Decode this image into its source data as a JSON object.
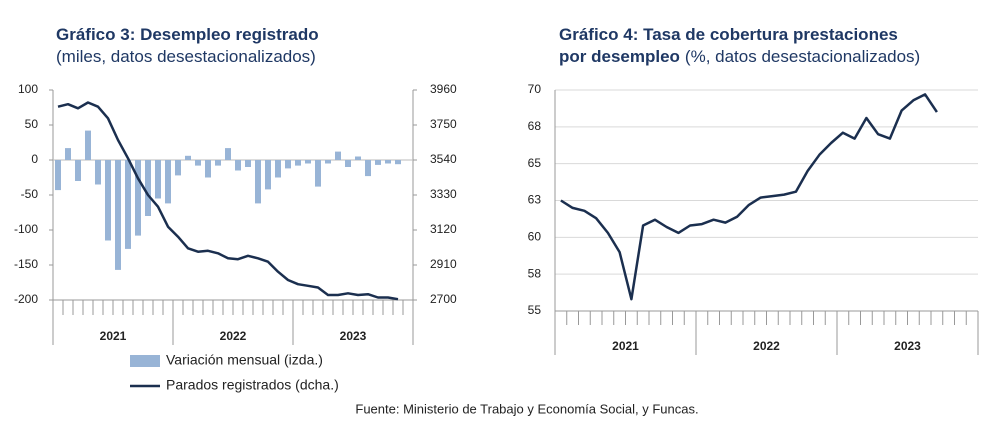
{
  "chart_data": [
    {
      "type": "bar_line",
      "title": [
        "Gráfico 3: Desempleo registrado"
      ],
      "subtitle": "(miles, datos desestacionalizados)",
      "xlim": [
        0,
        36
      ],
      "xticks": [
        {
          "value": 6,
          "label": "2021"
        },
        {
          "value": 18,
          "label": "2022"
        },
        {
          "value": 30,
          "label": "2023"
        }
      ],
      "ylim": [
        -200,
        100
      ],
      "yticks": [
        -200,
        -150,
        -100,
        -50,
        0,
        50,
        100
      ],
      "y2lim": [
        2700,
        3960
      ],
      "y2ticks": [
        2700,
        2910,
        3120,
        3330,
        3540,
        3750,
        3960
      ],
      "grid": false,
      "legend": "bottom",
      "series": [
        {
          "name": "Variación mensual (izda.)",
          "kind": "bar",
          "color": "#98b4d6",
          "values": [
            -43,
            17,
            -30,
            42,
            -35,
            -115,
            -157,
            -127,
            -108,
            -80,
            -55,
            -62,
            -22,
            6,
            -8,
            -25,
            -8,
            17,
            -15,
            -10,
            -62,
            -42,
            -25,
            -12,
            -8,
            -5,
            -38,
            -5,
            12,
            -10,
            5,
            -23,
            -7,
            -5,
            -6
          ]
        },
        {
          "name": "Parados registrados (dcha.)",
          "kind": "line",
          "axis": "y2",
          "color": "#1b2f4f",
          "values": [
            3860,
            3875,
            3850,
            3885,
            3860,
            3790,
            3660,
            3550,
            3430,
            3330,
            3260,
            3140,
            3080,
            3010,
            2990,
            2995,
            2980,
            2950,
            2945,
            2965,
            2950,
            2930,
            2870,
            2820,
            2795,
            2785,
            2775,
            2730,
            2730,
            2740,
            2730,
            2735,
            2715,
            2715,
            2705
          ]
        }
      ]
    },
    {
      "type": "line",
      "title": [
        "Gráfico 4: Tasa de cobertura prestaciones",
        "por desempleo"
      ],
      "subtitle": "(%, datos desestacionalizados)",
      "xlim": [
        0,
        36
      ],
      "xticks": [
        {
          "value": 6,
          "label": "2021"
        },
        {
          "value": 18,
          "label": "2022"
        },
        {
          "value": 30,
          "label": "2023"
        }
      ],
      "ylim": [
        55,
        70
      ],
      "yticks": [
        55,
        {
          "value": 57.5,
          "label": "58"
        },
        60,
        {
          "value": 62.5,
          "label": "63"
        },
        65,
        {
          "value": 67.5,
          "label": "68"
        },
        70
      ],
      "grid": true,
      "series": [
        {
          "name": "Tasa de cobertura",
          "kind": "line",
          "color": "#1b2f4f",
          "values": [
            62.5,
            62.0,
            61.8,
            61.3,
            60.3,
            59.0,
            55.8,
            60.8,
            61.2,
            60.7,
            60.3,
            60.8,
            60.9,
            61.2,
            61.0,
            61.4,
            62.2,
            62.7,
            62.8,
            62.9,
            63.1,
            64.5,
            65.6,
            66.4,
            67.1,
            66.7,
            68.1,
            67.0,
            66.7,
            68.6,
            69.3,
            69.7,
            68.5
          ]
        }
      ]
    }
  ],
  "source": "Fuente: Ministerio de Trabajo y Economía Social, y Funcas."
}
